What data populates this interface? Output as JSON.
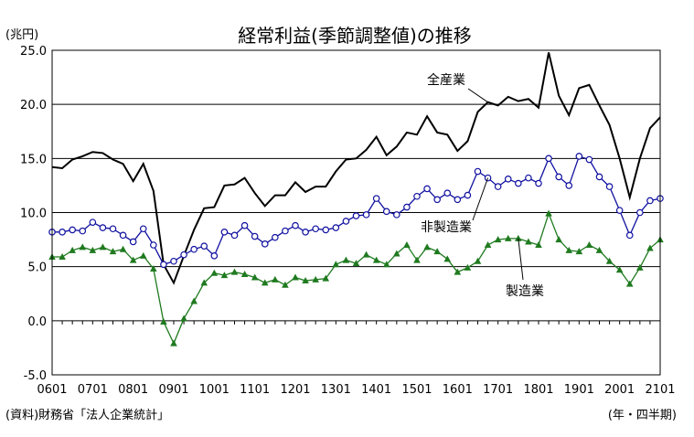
{
  "chart_data": {
    "type": "line",
    "title": "経常利益(季節調整値)の推移",
    "ylabel": "(兆円)",
    "xlabel_note": "(年・四半期)",
    "source": "(資料)財務省「法人企業統計」",
    "ylim": [
      -5.0,
      25.0
    ],
    "yticks": [
      "25.0",
      "20.0",
      "15.0",
      "10.0",
      "5.0",
      "0.0",
      "-5.0"
    ],
    "xtick_labels": [
      "0601",
      "0701",
      "0801",
      "0901",
      "1001",
      "1101",
      "1201",
      "1301",
      "1401",
      "1501",
      "1601",
      "1701",
      "1801",
      "1901",
      "2001",
      "2101"
    ],
    "grid": true,
    "colors": {
      "all": "#000000",
      "nonmfg": "#1010a0",
      "mfg": "#1f7a1f"
    },
    "series": [
      {
        "name": "全産業",
        "key": "all",
        "values": [
          14.2,
          14.1,
          14.9,
          15.2,
          15.6,
          15.5,
          14.9,
          14.5,
          12.9,
          14.5,
          12.0,
          5.2,
          3.5,
          6.0,
          8.4,
          10.4,
          10.5,
          12.5,
          12.6,
          13.2,
          11.8,
          10.6,
          11.6,
          11.6,
          12.8,
          11.9,
          12.4,
          12.4,
          13.8,
          14.9,
          15.0,
          15.8,
          17.0,
          15.3,
          16.1,
          17.4,
          17.2,
          18.9,
          17.4,
          17.2,
          15.7,
          16.6,
          19.3,
          20.2,
          19.9,
          20.7,
          20.3,
          20.5,
          19.7,
          24.8,
          20.8,
          19.0,
          21.5,
          21.8,
          19.9,
          18.1,
          15.0,
          11.4,
          15.0,
          17.8,
          18.8
        ]
      },
      {
        "name": "非製造業",
        "key": "nonmfg",
        "values": [
          8.2,
          8.2,
          8.4,
          8.3,
          9.1,
          8.6,
          8.5,
          7.9,
          7.3,
          8.5,
          7.0,
          5.2,
          5.5,
          6.1,
          6.6,
          6.9,
          6.0,
          8.2,
          7.9,
          8.8,
          7.8,
          7.1,
          7.7,
          8.3,
          8.8,
          8.2,
          8.5,
          8.4,
          8.6,
          9.2,
          9.7,
          9.8,
          11.3,
          10.1,
          9.8,
          10.5,
          11.5,
          12.2,
          11.2,
          11.8,
          11.2,
          11.6,
          13.8,
          13.2,
          12.4,
          13.1,
          12.7,
          13.2,
          12.7,
          15.0,
          13.3,
          12.5,
          15.2,
          14.9,
          13.3,
          12.4,
          10.2,
          7.9,
          10.0,
          11.1,
          11.3
        ]
      },
      {
        "name": "製造業",
        "key": "mfg",
        "values": [
          5.9,
          5.9,
          6.5,
          6.8,
          6.5,
          6.8,
          6.4,
          6.6,
          5.6,
          6.0,
          4.8,
          -0.1,
          -2.1,
          0.2,
          1.8,
          3.5,
          4.4,
          4.2,
          4.5,
          4.3,
          4.0,
          3.5,
          3.8,
          3.3,
          4.0,
          3.7,
          3.8,
          3.9,
          5.2,
          5.6,
          5.3,
          6.1,
          5.6,
          5.2,
          6.2,
          7.0,
          5.6,
          6.8,
          6.4,
          5.7,
          4.5,
          4.9,
          5.5,
          7.0,
          7.5,
          7.6,
          7.6,
          7.3,
          7.0,
          9.9,
          7.5,
          6.5,
          6.4,
          7.0,
          6.5,
          5.5,
          4.7,
          3.4,
          4.9,
          6.7,
          7.5
        ]
      }
    ],
    "annotations": [
      {
        "series": "all",
        "text": "全産業"
      },
      {
        "series": "nonmfg",
        "text": "非製造業"
      },
      {
        "series": "mfg",
        "text": "製造業"
      }
    ]
  }
}
